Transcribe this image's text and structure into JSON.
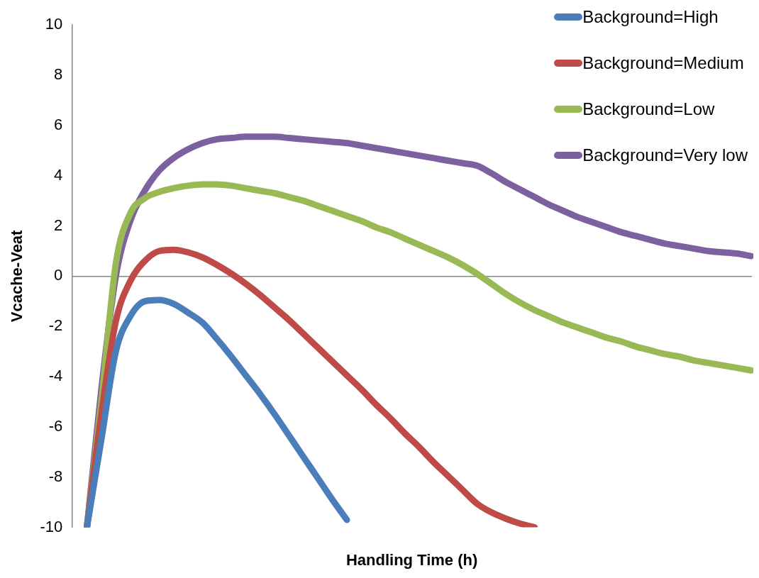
{
  "chart_data": {
    "type": "line",
    "xlabel": "Handling Time (h)",
    "ylabel": "Vcache-Veat",
    "categories": [
      null,
      null,
      null,
      null,
      null,
      null,
      null,
      null,
      null,
      null,
      null,
      null,
      null,
      null,
      null,
      null,
      null,
      null,
      null,
      null,
      null,
      null,
      null,
      null,
      null,
      null,
      null,
      null,
      null,
      null,
      null,
      null,
      null,
      null,
      null,
      null,
      null,
      null,
      null,
      null,
      null,
      null,
      null,
      null,
      null,
      null,
      null,
      null
    ],
    "ylim": [
      -10,
      10
    ],
    "yticks": [
      -10,
      -8,
      -6,
      -4,
      -2,
      0,
      2,
      4,
      6,
      8,
      10
    ],
    "legend": "top right",
    "marker": "none",
    "line_style": "solid",
    "series": [
      {
        "name": "Background=High",
        "color": "#4a7ebb",
        "values": [
          null,
          -10,
          -6.5,
          -3,
          -1.6,
          -1.0,
          -0.95,
          -1.1,
          -1.45,
          -1.85,
          -2.5,
          -3.2,
          -3.95,
          -4.7,
          -5.5,
          -6.35,
          -7.2,
          -8.05,
          -8.9,
          -9.7,
          null,
          null,
          null,
          null,
          null,
          null,
          null,
          null,
          null,
          null,
          null,
          null,
          null,
          null,
          null,
          null,
          null,
          null,
          null,
          null,
          null,
          null,
          null,
          null,
          null,
          null,
          null,
          null
        ]
      },
      {
        "name": "Background=Medium",
        "color": "#be4b48",
        "values": [
          null,
          -10,
          -5.5,
          -1.8,
          -0.2,
          0.6,
          1.0,
          1.05,
          0.95,
          0.75,
          0.45,
          0.1,
          -0.3,
          -0.75,
          -1.25,
          -1.75,
          -2.3,
          -2.85,
          -3.4,
          -3.95,
          -4.5,
          -5.1,
          -5.65,
          -6.25,
          -6.8,
          -7.4,
          -7.95,
          -8.5,
          -9.05,
          -9.4,
          -9.65,
          -9.85,
          -10,
          null,
          null,
          null,
          null,
          null,
          null,
          null,
          null,
          null,
          null,
          null,
          null,
          null,
          null,
          null
        ]
      },
      {
        "name": "Background=Low",
        "color": "#98b954",
        "values": [
          null,
          -10,
          -5,
          0.5,
          2.5,
          3.1,
          3.35,
          3.5,
          3.6,
          3.65,
          3.65,
          3.6,
          3.5,
          3.4,
          3.3,
          3.15,
          3.0,
          2.8,
          2.6,
          2.4,
          2.2,
          1.95,
          1.75,
          1.5,
          1.25,
          1.0,
          0.75,
          0.45,
          0.1,
          -0.3,
          -0.7,
          -1.05,
          -1.35,
          -1.6,
          -1.85,
          -2.05,
          -2.25,
          -2.45,
          -2.6,
          -2.8,
          -2.95,
          -3.1,
          -3.2,
          -3.35,
          -3.45,
          -3.55,
          -3.65,
          -3.75
        ]
      },
      {
        "name": "Background=Very low",
        "color": "#7d60a0",
        "values": [
          null,
          -10,
          -4.5,
          0,
          2.2,
          3.4,
          4.2,
          4.7,
          5.05,
          5.3,
          5.45,
          5.5,
          5.55,
          5.55,
          5.55,
          5.5,
          5.45,
          5.4,
          5.35,
          5.3,
          5.2,
          5.1,
          5.0,
          4.9,
          4.8,
          4.7,
          4.6,
          4.5,
          4.4,
          4.1,
          3.75,
          3.45,
          3.15,
          2.85,
          2.6,
          2.35,
          2.15,
          1.95,
          1.75,
          1.6,
          1.45,
          1.3,
          1.2,
          1.1,
          1.0,
          0.95,
          0.9,
          0.8
        ]
      }
    ]
  }
}
